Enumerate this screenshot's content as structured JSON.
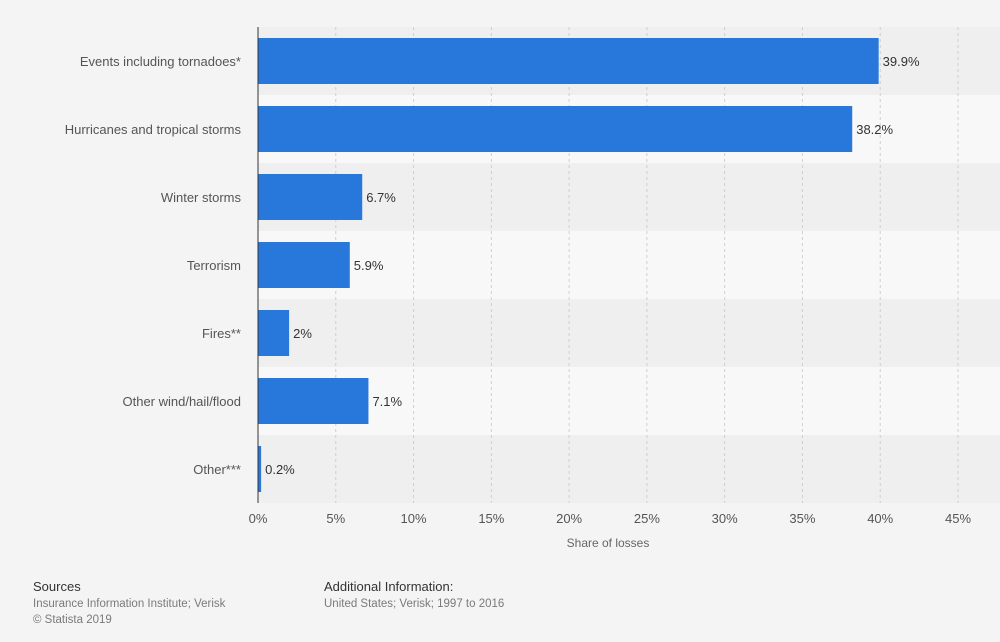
{
  "chart_data": {
    "type": "bar",
    "orientation": "horizontal",
    "categories": [
      "Events including tornadoes*",
      "Hurricanes and tropical storms",
      "Winter storms",
      "Terrorism",
      "Fires**",
      "Other wind/hail/flood",
      "Other***"
    ],
    "values": [
      39.9,
      38.2,
      6.7,
      5.9,
      2,
      7.1,
      0.2
    ],
    "value_labels": [
      "39.9%",
      "38.2%",
      "6.7%",
      "5.9%",
      "2%",
      "7.1%",
      "0.2%"
    ],
    "xticks": [
      "0%",
      "5%",
      "10%",
      "15%",
      "20%",
      "25%",
      "30%",
      "35%",
      "40%",
      "45%"
    ],
    "xlim": [
      0,
      45
    ],
    "xlabel": "Share of losses",
    "ylabel": "",
    "bar_color": "#2878dc",
    "grid": true
  },
  "footer": {
    "sources_title": "Sources",
    "sources_line1": "Insurance Information Institute; Verisk",
    "sources_line2": "© Statista 2019",
    "additional_title": "Additional Information:",
    "additional_line1": "United States; Verisk; 1997 to 2016"
  }
}
